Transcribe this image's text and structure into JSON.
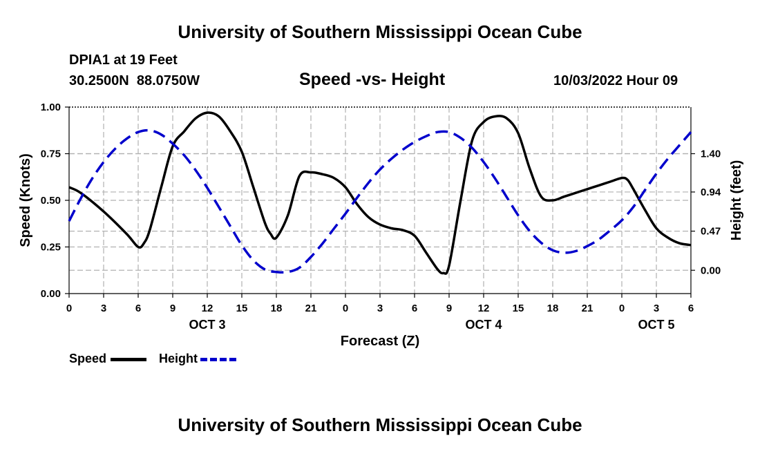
{
  "header": {
    "title": "University of Southern Mississippi Ocean Cube",
    "station": "DPIA1 at 19 Feet",
    "coords": "30.2500N  88.0750W",
    "subtitle": "Speed -vs- Height",
    "datetime": "10/03/2022 Hour 09"
  },
  "footer": {
    "title": "University of Southern Mississippi Ocean Cube"
  },
  "legend": {
    "speed_label": "Speed",
    "height_label": "Height"
  },
  "colors": {
    "speed": "#000000",
    "height": "#0000cc",
    "grid": "#b0b0b0"
  },
  "chart_data": {
    "type": "line",
    "xlabel": "Forecast (Z)",
    "ylabel_left": "Speed (Knots)",
    "ylabel_right": "Height (feet)",
    "xlim": [
      0,
      54
    ],
    "ylim_left": [
      0,
      1
    ],
    "ylim_right": [
      -0.28,
      1.96
    ],
    "x_ticks": [
      0,
      3,
      6,
      9,
      12,
      15,
      18,
      21,
      24,
      27,
      30,
      33,
      36,
      39,
      42,
      45,
      48,
      51,
      54
    ],
    "x_tick_labels": [
      "0",
      "3",
      "6",
      "9",
      "12",
      "15",
      "18",
      "21",
      "0",
      "3",
      "6",
      "9",
      "12",
      "15",
      "18",
      "21",
      "0",
      "3",
      "6"
    ],
    "left_ticks": [
      0,
      0.25,
      0.5,
      0.75,
      1
    ],
    "left_tick_labels": [
      "0.00",
      "0.25",
      "0.50",
      "0.75",
      "1.00"
    ],
    "right_ticks": [
      0,
      0.47,
      0.94,
      1.4
    ],
    "right_tick_labels": [
      "0.00",
      "0.47",
      "0.94",
      "1.40"
    ],
    "day_labels": [
      {
        "x": 12,
        "label": "OCT 3"
      },
      {
        "x": 36,
        "label": "OCT 4"
      },
      {
        "x": 51,
        "label": "OCT 5"
      }
    ],
    "grid": true,
    "series": [
      {
        "name": "Speed",
        "axis": "left",
        "style": "solid",
        "x": [
          0,
          1,
          3,
          5,
          6,
          6.5,
          7,
          8,
          9,
          10,
          11,
          12,
          13,
          14,
          15,
          16,
          17,
          17.5,
          18,
          19,
          20,
          21,
          22,
          23,
          24,
          25,
          26,
          27,
          28,
          29,
          30,
          31,
          32,
          32.5,
          33,
          34,
          35,
          36,
          37,
          38,
          39,
          40,
          41,
          42,
          43,
          44,
          45,
          46,
          47,
          48,
          48.5,
          49,
          50,
          51,
          52,
          53,
          54
        ],
        "y": [
          0.57,
          0.54,
          0.44,
          0.32,
          0.25,
          0.27,
          0.34,
          0.57,
          0.79,
          0.87,
          0.94,
          0.97,
          0.95,
          0.87,
          0.76,
          0.57,
          0.38,
          0.32,
          0.3,
          0.42,
          0.63,
          0.65,
          0.64,
          0.62,
          0.57,
          0.48,
          0.41,
          0.37,
          0.35,
          0.34,
          0.31,
          0.22,
          0.13,
          0.11,
          0.15,
          0.5,
          0.82,
          0.92,
          0.95,
          0.94,
          0.86,
          0.67,
          0.52,
          0.5,
          0.52,
          0.54,
          0.56,
          0.58,
          0.6,
          0.62,
          0.61,
          0.56,
          0.45,
          0.35,
          0.3,
          0.27,
          0.26
        ]
      },
      {
        "name": "Height",
        "axis": "right",
        "style": "dashed",
        "x": [
          0,
          1,
          2,
          3,
          4,
          5,
          6,
          7,
          8,
          9,
          10,
          11,
          12,
          13,
          14,
          15,
          16,
          17,
          18,
          19,
          20,
          21,
          22,
          23,
          24,
          25,
          26,
          27,
          28,
          29,
          30,
          31,
          32,
          33,
          34,
          35,
          36,
          37,
          38,
          39,
          40,
          41,
          42,
          43,
          44,
          45,
          46,
          47,
          48,
          49,
          50,
          51,
          52,
          53,
          54
        ],
        "y": [
          0.59,
          0.86,
          1.1,
          1.3,
          1.46,
          1.58,
          1.66,
          1.68,
          1.63,
          1.52,
          1.38,
          1.2,
          0.99,
          0.76,
          0.53,
          0.3,
          0.12,
          0.01,
          -0.02,
          -0.02,
          0.03,
          0.16,
          0.32,
          0.5,
          0.68,
          0.87,
          1.05,
          1.21,
          1.34,
          1.45,
          1.54,
          1.61,
          1.66,
          1.66,
          1.59,
          1.47,
          1.3,
          1.1,
          0.88,
          0.66,
          0.47,
          0.33,
          0.24,
          0.21,
          0.23,
          0.29,
          0.37,
          0.48,
          0.6,
          0.76,
          0.96,
          1.16,
          1.34,
          1.5,
          1.66
        ]
      }
    ]
  }
}
